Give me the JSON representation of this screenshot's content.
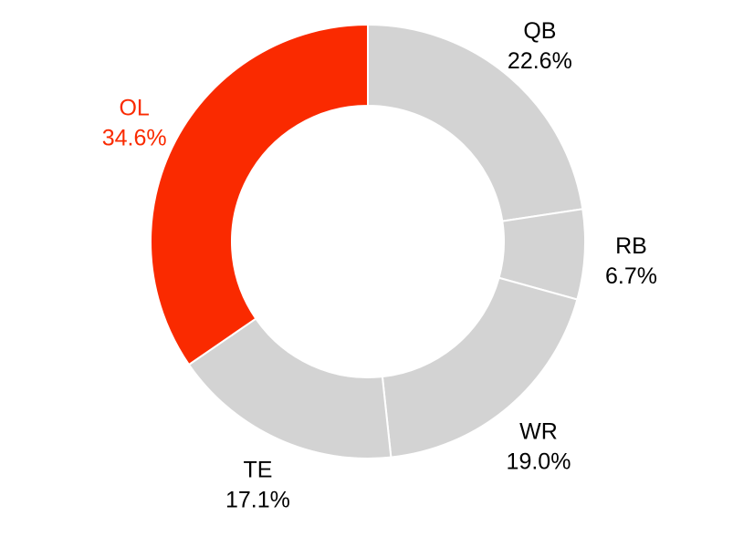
{
  "chart_data": {
    "type": "pie",
    "donut": true,
    "title": "",
    "slices": [
      {
        "label": "QB",
        "value": 22.6,
        "value_label": "22.6%",
        "color": "#d3d3d3",
        "label_color": "#000000"
      },
      {
        "label": "RB",
        "value": 6.7,
        "value_label": "6.7%",
        "color": "#d3d3d3",
        "label_color": "#000000"
      },
      {
        "label": "WR",
        "value": 19.0,
        "value_label": "19.0%",
        "color": "#d3d3d3",
        "label_color": "#000000"
      },
      {
        "label": "TE",
        "value": 17.1,
        "value_label": "17.1%",
        "color": "#d3d3d3",
        "label_color": "#000000"
      },
      {
        "label": "OL",
        "value": 34.6,
        "value_label": "34.6%",
        "color": "#fa2a00",
        "label_color": "#fa2a00"
      }
    ],
    "start_angle": "12 o'clock",
    "direction": "clockwise",
    "legend": "none"
  }
}
